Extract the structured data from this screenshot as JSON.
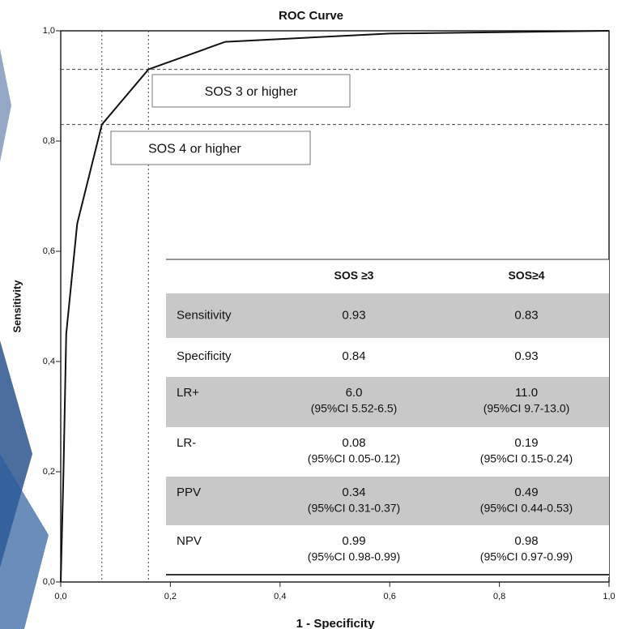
{
  "chart_data": {
    "type": "line",
    "title": "ROC Curve",
    "xlabel": "1 - Specificity",
    "ylabel": "Sensitivity",
    "x": [
      0,
      0.005,
      0.01,
      0.03,
      0.075,
      0.16,
      0.3,
      0.6,
      1.0
    ],
    "values": [
      0,
      0.2,
      0.45,
      0.65,
      0.83,
      0.93,
      0.98,
      0.995,
      1.0
    ],
    "color": "#111111",
    "xlim": [
      0,
      1
    ],
    "ylim": [
      0,
      1
    ],
    "xticks": [
      {
        "value": 0,
        "label": "0,0"
      },
      {
        "value": 0.2,
        "label": "0,2"
      },
      {
        "value": 0.4,
        "label": "0,4"
      },
      {
        "value": 0.6,
        "label": "0,6"
      },
      {
        "value": 0.8,
        "label": "0,8"
      },
      {
        "value": 1.0,
        "label": "1,0"
      }
    ],
    "yticks": [
      {
        "value": 0,
        "label": "0,0"
      },
      {
        "value": 0.2,
        "label": "0,2"
      },
      {
        "value": 0.4,
        "label": "0,4"
      },
      {
        "value": 0.6,
        "label": "0,6"
      },
      {
        "value": 0.8,
        "label": "0,8"
      },
      {
        "value": 1.0,
        "label": "1,0"
      }
    ],
    "reference_x": [
      0.075,
      0.16
    ],
    "reference_y": [
      0.83,
      0.93
    ],
    "annotations": [
      "SOS 3 or higher",
      "SOS 4 or higher"
    ],
    "table": {
      "header": [
        "SOS ≥3",
        "SOS≥4"
      ],
      "rows": [
        {
          "label": "Sensitivity",
          "cells": [
            [
              "0.93"
            ],
            [
              "0.83"
            ]
          ]
        },
        {
          "label": "Specificity",
          "cells": [
            [
              "0.84"
            ],
            [
              "0.93"
            ]
          ]
        },
        {
          "label": "LR+",
          "cells": [
            [
              "6.0",
              "(95%CI 5.52-6.5)"
            ],
            [
              "11.0",
              "(95%CI 9.7-13.0)"
            ]
          ]
        },
        {
          "label": "LR-",
          "cells": [
            [
              "0.08",
              "(95%CI 0.05-0.12)"
            ],
            [
              "0.19",
              "(95%CI 0.15-0.24)"
            ]
          ]
        },
        {
          "label": "PPV",
          "cells": [
            [
              "0.34",
              "(95%CI 0.31-0.37)"
            ],
            [
              "0.49",
              "(95%CI 0.44-0.53)"
            ]
          ]
        },
        {
          "label": "NPV",
          "cells": [
            [
              "0.99",
              "(95%CI 0.98-0.99)"
            ],
            [
              "0.98",
              "(95%CI 0.97-0.99)"
            ]
          ]
        }
      ]
    }
  }
}
